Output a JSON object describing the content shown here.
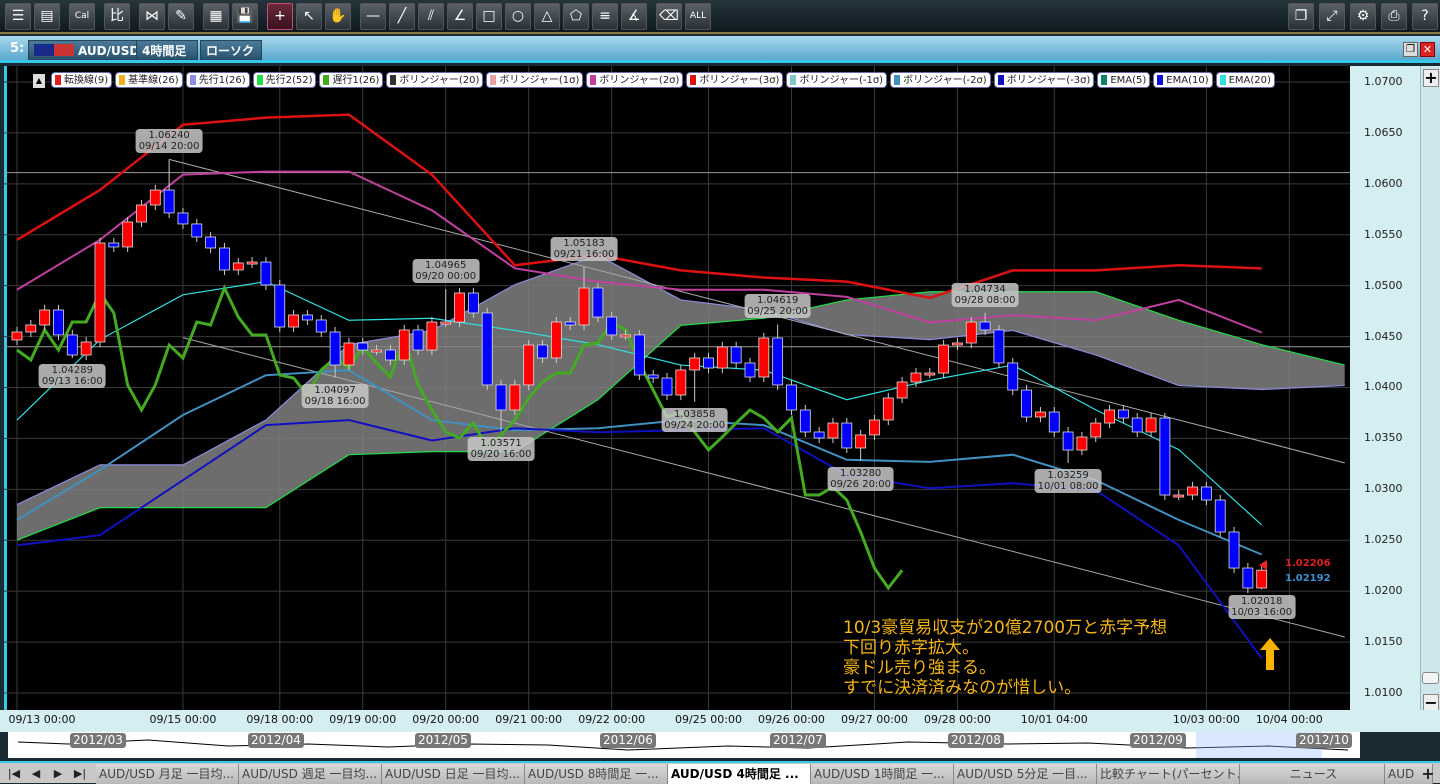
{
  "toolbar": {
    "left": [
      {
        "name": "list-icon",
        "g": "☰"
      },
      {
        "name": "new-chart-icon",
        "g": "▤"
      },
      {
        "name": "calendar-icon",
        "g": "Cal"
      },
      {
        "name": "compare-icon",
        "g": "比"
      },
      {
        "name": "indicator-icon",
        "g": "⋈"
      },
      {
        "name": "pencil-icon",
        "g": "✎"
      },
      {
        "name": "chart-settings-icon",
        "g": "▦"
      },
      {
        "name": "save-icon",
        "g": "💾"
      },
      {
        "name": "crosshair-icon",
        "g": "+",
        "active": true
      },
      {
        "name": "cursor-icon",
        "g": "↖"
      },
      {
        "name": "hand-icon",
        "g": "✋"
      },
      {
        "name": "horizontal-line-icon",
        "g": "—"
      },
      {
        "name": "trend-line-icon",
        "g": "╱"
      },
      {
        "name": "parallel-lines-icon",
        "g": "⫽"
      },
      {
        "name": "fibonacci-icon",
        "g": "∠"
      },
      {
        "name": "rectangle-icon",
        "g": "□"
      },
      {
        "name": "circle-icon",
        "g": "○"
      },
      {
        "name": "triangle-icon",
        "g": "△"
      },
      {
        "name": "pentagon-icon",
        "g": "⬠"
      },
      {
        "name": "fib-retracement-icon",
        "g": "≡"
      },
      {
        "name": "fan-icon",
        "g": "∡"
      },
      {
        "name": "eraser-icon",
        "g": "⌫"
      },
      {
        "name": "erase-all-icon",
        "g": "ALL"
      }
    ],
    "right": [
      {
        "name": "window-icon",
        "g": "❐"
      },
      {
        "name": "fullscreen-icon",
        "g": "⤢"
      },
      {
        "name": "gear-icon",
        "g": "⚙"
      },
      {
        "name": "print-icon",
        "g": "⎙"
      },
      {
        "name": "help-icon",
        "g": "?"
      }
    ]
  },
  "window": {
    "number": "5:",
    "symbol": "AUD/USD",
    "timeframe": "4時間足",
    "chart_type": "ローソク"
  },
  "legend": [
    {
      "label": "転換線(9)",
      "color": "#e02020"
    },
    {
      "label": "基準線(26)",
      "color": "#f0b020"
    },
    {
      "label": "先行1(26)",
      "color": "#8c8ce0"
    },
    {
      "label": "先行2(52)",
      "color": "#22dd44"
    },
    {
      "label": "遅行1(26)",
      "color": "#44aa22"
    },
    {
      "label": "ボリンジャー(20)",
      "color": "#333333"
    },
    {
      "label": "ボリンジャー(1σ)",
      "color": "#e8a0a0"
    },
    {
      "label": "ボリンジャー(2σ)",
      "color": "#c040a0"
    },
    {
      "label": "ボリンジャー(3σ)",
      "color": "#dd1111"
    },
    {
      "label": "ボリンジャー(-1σ)",
      "color": "#80c8c8"
    },
    {
      "label": "ボリンジャー(-2σ)",
      "color": "#4090c0"
    },
    {
      "label": "ボリンジャー(-3σ)",
      "color": "#1010c0"
    },
    {
      "label": "EMA(5)",
      "color": "#108070"
    },
    {
      "label": "EMA(10)",
      "color": "#1010d0"
    },
    {
      "label": "EMA(20)",
      "color": "#30e0e0"
    }
  ],
  "chart_data": {
    "type": "candlestick",
    "ylim": [
      1.01,
      1.07
    ],
    "yticks": [
      "1.0700",
      "1.0650",
      "1.0600",
      "1.0550",
      "1.0500",
      "1.0450",
      "1.0400",
      "1.0350",
      "1.0300",
      "1.0250",
      "1.0200",
      "1.0150",
      "1.0100"
    ],
    "first_open": 1.04467,
    "up_color": "#ff0000",
    "down_color": "#0000ff",
    "days": [
      {
        "date": "09/13",
        "closes": [
          1.04545,
          1.04614,
          1.04761,
          1.04516,
          1.04319,
          1.04447
        ]
      },
      {
        "date": "09/14",
        "closes": [
          1.05419,
          1.0538,
          1.05625,
          1.05792,
          1.05939,
          1.05714
        ]
      },
      {
        "date": "09/15",
        "closes": [
          1.05606
        ]
      },
      {
        "date": "09/17",
        "closes": [
          1.05478,
          1.0537,
          1.05154,
          1.05223,
          1.05232,
          1.05007
        ]
      },
      {
        "date": "09/18",
        "closes": [
          1.04594,
          1.04712,
          1.04663,
          1.04545,
          1.04221,
          1.04437
        ]
      },
      {
        "date": "09/19",
        "closes": [
          1.04368,
          1.04368,
          1.0427,
          1.04565,
          1.04368,
          1.04643
        ]
      },
      {
        "date": "09/20",
        "closes": [
          1.04643,
          1.04928,
          1.04732,
          1.04025,
          1.03779,
          1.04025
        ]
      },
      {
        "date": "09/21",
        "closes": [
          1.04417,
          1.0429,
          1.04643,
          1.04614,
          1.04977,
          1.04692
        ]
      },
      {
        "date": "09/22",
        "closes": [
          1.04516
        ]
      },
      {
        "date": "09/24",
        "closes": [
          1.04516,
          1.04123,
          1.04093,
          1.03926,
          1.04172,
          1.0429
        ]
      },
      {
        "date": "09/25",
        "closes": [
          1.04191,
          1.04398,
          1.04241,
          1.04103,
          1.04486,
          1.04025
        ]
      },
      {
        "date": "09/26",
        "closes": [
          1.03779,
          1.03563,
          1.03504,
          1.03651,
          1.03406,
          1.03534
        ]
      },
      {
        "date": "09/27",
        "closes": [
          1.03681,
          1.03897,
          1.04054,
          1.04142,
          1.04142,
          1.04417
        ]
      },
      {
        "date": "09/28",
        "closes": [
          1.04437,
          1.04643,
          1.04565,
          1.04241,
          1.03975,
          1.0371
        ]
      },
      {
        "date": "10/01",
        "closes": [
          1.03759,
          1.03563,
          1.03386,
          1.03514,
          1.03651,
          1.03779
        ]
      },
      {
        "date": "10/02",
        "closes": [
          1.037,
          1.03563,
          1.037,
          1.02944,
          1.02944,
          1.03023
        ]
      },
      {
        "date": "10/03",
        "closes": [
          1.02895,
          1.02581,
          1.02227,
          1.02031,
          1.02206
        ]
      }
    ],
    "indicator_times": [
      "09/13 00:00",
      "09/14 00:00",
      "09/15 00:00",
      "09/17 20:00",
      "09/18 20:00",
      "09/19 20:00",
      "09/20 20:00",
      "09/21 20:00",
      "09/24 16:00",
      "09/25 16:00",
      "09/26 16:00",
      "09/27 16:00",
      "09/28 16:00",
      "10/01 16:00",
      "10/02 16:00",
      "10/03 16:00",
      "10/04 16:00"
    ],
    "cloud_color": "#808080",
    "lines": [
      {
        "key": "bb_p3",
        "color": "#dd1111",
        "width": 2.5,
        "values": [
          1.0545,
          1.0594,
          1.0658,
          1.0665,
          1.0668,
          1.0609,
          1.052,
          1.053,
          1.0515,
          1.0508,
          1.0504,
          1.0488,
          1.0515,
          1.0515,
          1.052,
          1.0517
        ]
      },
      {
        "key": "bb_p2",
        "color": "#c040a0",
        "width": 2,
        "values": [
          1.0496,
          1.0545,
          1.0609,
          1.0612,
          1.0612,
          1.0574,
          1.0517,
          1.0504,
          1.0496,
          1.0496,
          1.0489,
          1.0464,
          1.0471,
          1.0466,
          1.0486,
          1.0454
        ]
      },
      {
        "key": "ema20",
        "color": "#30e0e0",
        "width": 1.2,
        "values": [
          1.0368,
          1.0447,
          1.0491,
          1.0504,
          1.0466,
          1.0468,
          1.0456,
          1.0442,
          1.0422,
          1.0417,
          1.0388,
          1.0407,
          1.0422,
          1.0378,
          1.0339,
          1.0265
        ]
      },
      {
        "key": "bb_m2",
        "color": "#4090c0",
        "width": 2,
        "values": [
          1.027,
          1.0319,
          1.0373,
          1.0412,
          1.0417,
          1.0368,
          1.0358,
          1.036,
          1.0368,
          1.0363,
          1.0329,
          1.0327,
          1.0334,
          1.0309,
          1.027,
          1.0236
        ]
      },
      {
        "key": "bb_m3",
        "color": "#1010c0",
        "width": 2,
        "values": [
          1.0245,
          1.0255,
          1.0309,
          1.0363,
          1.0368,
          1.0348,
          1.036,
          1.0356,
          1.0358,
          1.036,
          1.0314,
          1.0301,
          1.0306,
          1.0299,
          1.0245,
          1.0134
        ]
      }
    ],
    "span1": {
      "color": "#8c8ce0",
      "values": [
        1.0285,
        1.0324,
        1.0324,
        1.0368,
        1.0442,
        1.0456,
        1.0501,
        1.053,
        1.0486,
        1.0476,
        1.0452,
        1.0447,
        1.0456,
        1.0432,
        1.0402,
        1.0398,
        1.0402
      ]
    },
    "span2": {
      "color": "#22dd44",
      "values": [
        1.025,
        1.0282,
        1.0282,
        1.0282,
        1.0334,
        1.0337,
        1.0337,
        1.0388,
        1.0461,
        1.0468,
        1.0486,
        1.0494,
        1.0494,
        1.0494,
        1.0466,
        1.0442,
        1.0422
      ]
    },
    "chikou": {
      "color": "#44aa22",
      "shift": 26
    },
    "hlines": [
      1.0611,
      1.044
    ],
    "trendlines": [
      {
        "from": [
          "09/14 20:00",
          1.0624
        ],
        "to": [
          "10/04 16:00",
          1.0326
        ]
      },
      {
        "from": [
          "09/15 00:00",
          1.0449
        ],
        "to": [
          "10/04 16:00",
          1.0155
        ]
      }
    ],
    "annotations": [
      {
        "price": "1.06240",
        "time": "09/14 20:00",
        "kind": "high"
      },
      {
        "price": "1.04289",
        "time": "09/13 16:00",
        "kind": "low"
      },
      {
        "price": "1.04097",
        "time": "09/18 16:00",
        "kind": "low"
      },
      {
        "price": "1.04965",
        "time": "09/20 00:00",
        "kind": "high"
      },
      {
        "price": "1.03571",
        "time": "09/20 16:00",
        "kind": "low"
      },
      {
        "price": "1.05183",
        "time": "09/21 16:00",
        "kind": "high"
      },
      {
        "price": "1.03858",
        "time": "09/24 20:00",
        "kind": "low"
      },
      {
        "price": "1.04619",
        "time": "09/25 20:00",
        "kind": "high"
      },
      {
        "price": "1.03280",
        "time": "09/26 20:00",
        "kind": "low"
      },
      {
        "price": "1.04734",
        "time": "09/28 08:00",
        "kind": "high"
      },
      {
        "price": "1.03259",
        "time": "10/01 08:00",
        "kind": "low"
      },
      {
        "price": "1.02018",
        "time": "10/03 16:00",
        "kind": "low"
      }
    ],
    "xticks": [
      "09/13 00:00",
      "09/15 00:00",
      "09/18 00:00",
      "09/19 00:00",
      "09/20 00:00",
      "09/21 00:00",
      "09/22 00:00",
      "09/25 00:00",
      "09/26 00:00",
      "09/27 00:00",
      "09/28 00:00",
      "10/01 04:00",
      "10/03 00:00",
      "10/04 00:00"
    ],
    "bid": "1.02206",
    "ask": "1.02192"
  },
  "note": "10/3豪貿易収支が20億2700万と赤字予想\n下回り赤字拡大。\n豪ドル売り強まる。\nすでに決済済みなのが惜しい。",
  "navigator": {
    "months": [
      "2012/03",
      "2012/04",
      "2012/05",
      "2012/06",
      "2012/07",
      "2012/08",
      "2012/09",
      "2012/10"
    ]
  },
  "tabs": [
    {
      "label": "AUD/USD 月足 一目均..."
    },
    {
      "label": "AUD/USD 週足 一目均..."
    },
    {
      "label": "AUD/USD 日足 一目均..."
    },
    {
      "label": "AUD/USD 8時間足 一..."
    },
    {
      "label": "AUD/USD 4時間足 ...",
      "active": true
    },
    {
      "label": "AUD/USD 1時間足 一..."
    },
    {
      "label": "AUD/USD 5分足 一目..."
    },
    {
      "label": "比較チャート(パーセント..."
    },
    {
      "label": "ニュース"
    },
    {
      "label": "AUD"
    }
  ],
  "tab_nav": [
    "|◀",
    "◀",
    "▶",
    "▶|"
  ],
  "add_tab": "+"
}
